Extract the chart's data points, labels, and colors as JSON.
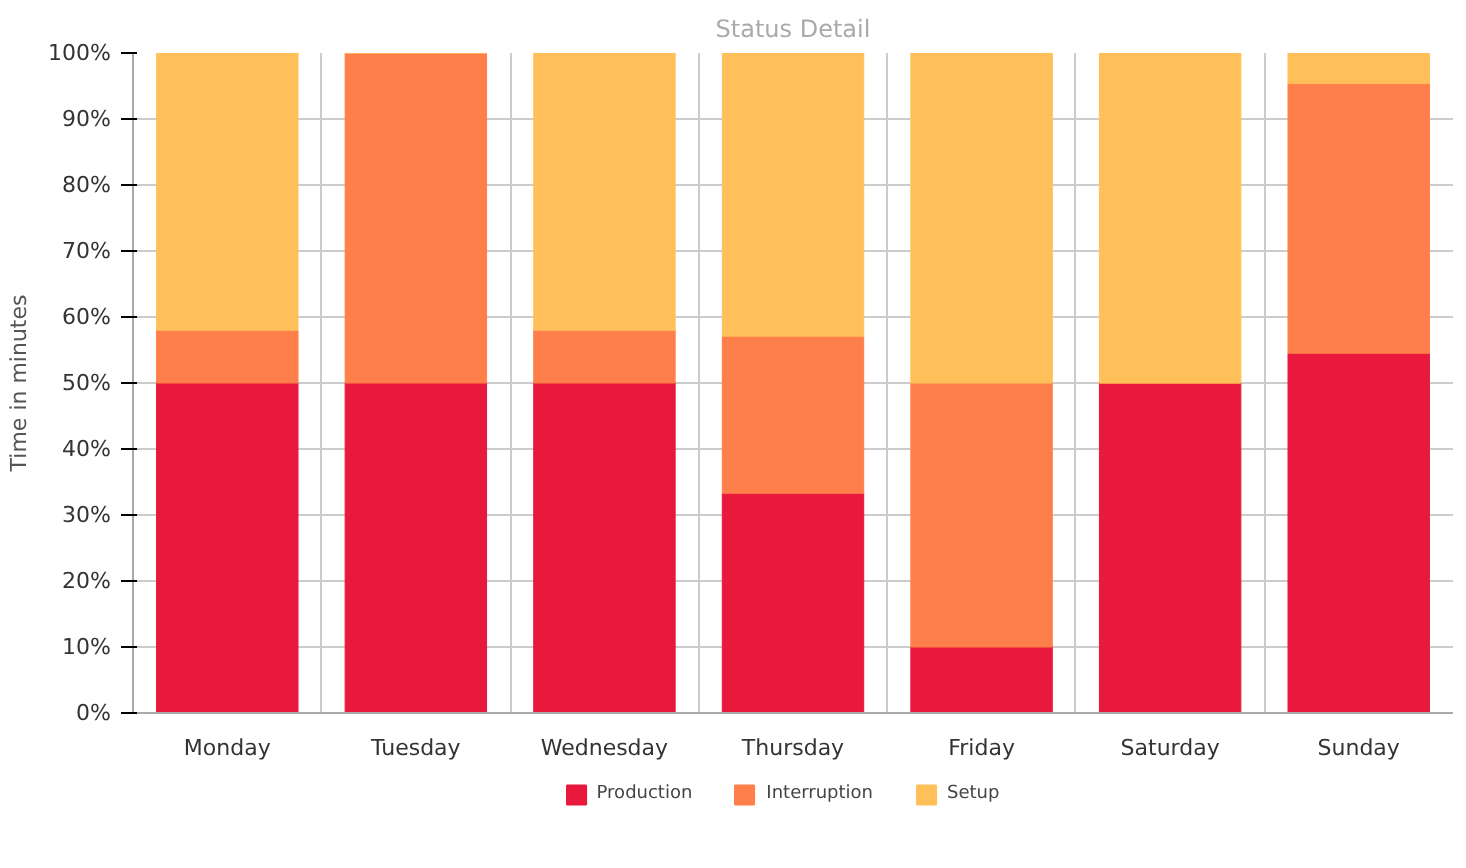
{
  "chart_data": {
    "type": "bar",
    "stacked": true,
    "title": "Status Detail",
    "ylabel": "Time in minutes",
    "categories": [
      "Monday",
      "Tuesday",
      "Wednesday",
      "Thursday",
      "Friday",
      "Saturday",
      "Sunday"
    ],
    "series": [
      {
        "name": "Production",
        "color": "#e8193c",
        "values": [
          50,
          50,
          50,
          33.3,
          10,
          50,
          54.5
        ]
      },
      {
        "name": "Interruption",
        "color": "#ff7f4a",
        "values": [
          8,
          50,
          8,
          23.8,
          40,
          0,
          40.9
        ]
      },
      {
        "name": "Setup",
        "color": "#ffc05a",
        "values": [
          42,
          0,
          42,
          42.9,
          50,
          50,
          4.6
        ]
      }
    ],
    "ylim": [
      0,
      100
    ],
    "yticks": [
      {
        "value": 0,
        "label": "0%"
      },
      {
        "value": 10,
        "label": "10%"
      },
      {
        "value": 20,
        "label": "20%"
      },
      {
        "value": 30,
        "label": "30%"
      },
      {
        "value": 40,
        "label": "40%"
      },
      {
        "value": 50,
        "label": "50%"
      },
      {
        "value": 60,
        "label": "60%"
      },
      {
        "value": 70,
        "label": "70%"
      },
      {
        "value": 80,
        "label": "80%"
      },
      {
        "value": 90,
        "label": "90%"
      },
      {
        "value": 100,
        "label": "100%"
      }
    ],
    "grid": true,
    "legend": "bottom"
  }
}
